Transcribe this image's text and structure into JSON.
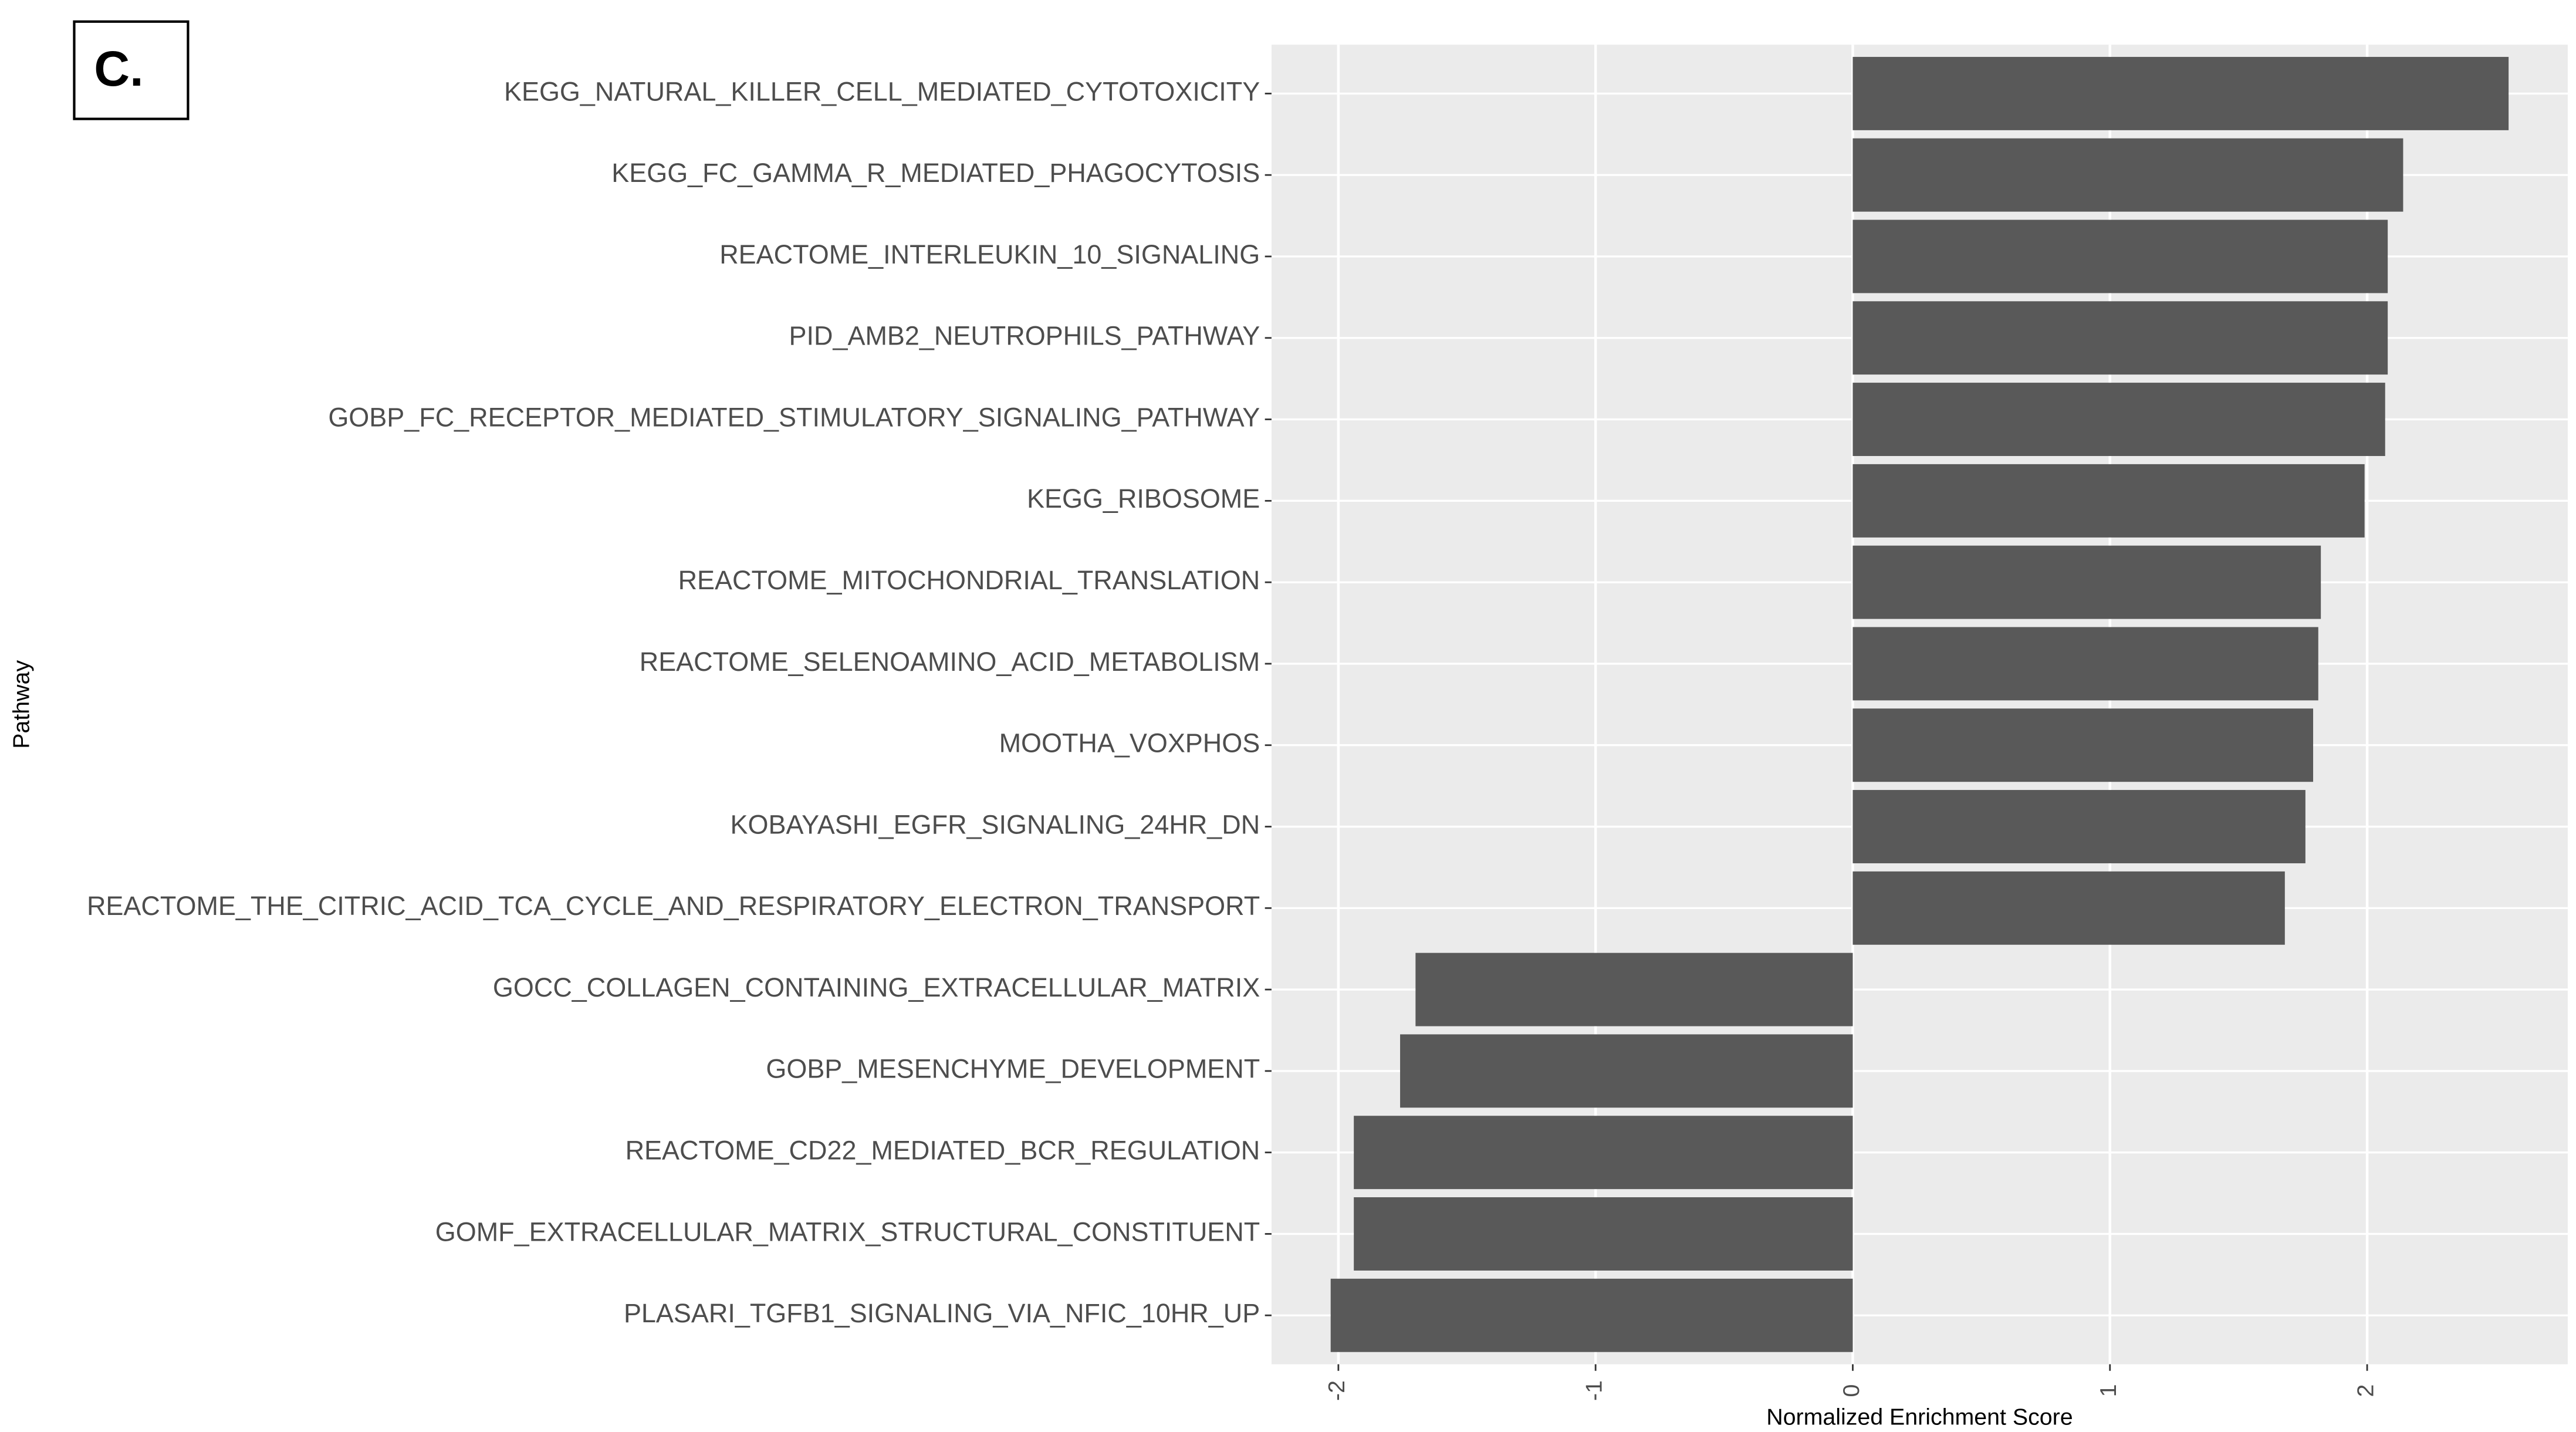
{
  "panel_label": "C.",
  "chart_data": {
    "type": "bar",
    "orientation": "horizontal",
    "x_label": "Normalized Enrichment Score",
    "y_label": "Pathway",
    "categories": [
      "KEGG_NATURAL_KILLER_CELL_MEDIATED_CYTOTOXICITY",
      "KEGG_FC_GAMMA_R_MEDIATED_PHAGOCYTOSIS",
      "REACTOME_INTERLEUKIN_10_SIGNALING",
      "PID_AMB2_NEUTROPHILS_PATHWAY",
      "GOBP_FC_RECEPTOR_MEDIATED_STIMULATORY_SIGNALING_PATHWAY",
      "KEGG_RIBOSOME",
      "REACTOME_MITOCHONDRIAL_TRANSLATION",
      "REACTOME_SELENOAMINO_ACID_METABOLISM",
      "MOOTHA_VOXPHOS",
      "KOBAYASHI_EGFR_SIGNALING_24HR_DN",
      "REACTOME_THE_CITRIC_ACID_TCA_CYCLE_AND_RESPIRATORY_ELECTRON_TRANSPORT",
      "GOCC_COLLAGEN_CONTAINING_EXTRACELLULAR_MATRIX",
      "GOBP_MESENCHYME_DEVELOPMENT",
      "REACTOME_CD22_MEDIATED_BCR_REGULATION",
      "GOMF_EXTRACELLULAR_MATRIX_STRUCTURAL_CONSTITUENT",
      "PLASARI_TGFB1_SIGNALING_VIA_NFIC_10HR_UP"
    ],
    "values": [
      2.55,
      2.14,
      2.08,
      2.08,
      2.07,
      1.99,
      1.82,
      1.81,
      1.79,
      1.76,
      1.68,
      -1.7,
      -1.76,
      -1.94,
      -1.94,
      -2.03
    ],
    "color": "#595959",
    "xlim": [
      -2.26,
      2.78
    ],
    "xticks": [
      -2,
      -1,
      0,
      1,
      2
    ],
    "grid": true
  }
}
